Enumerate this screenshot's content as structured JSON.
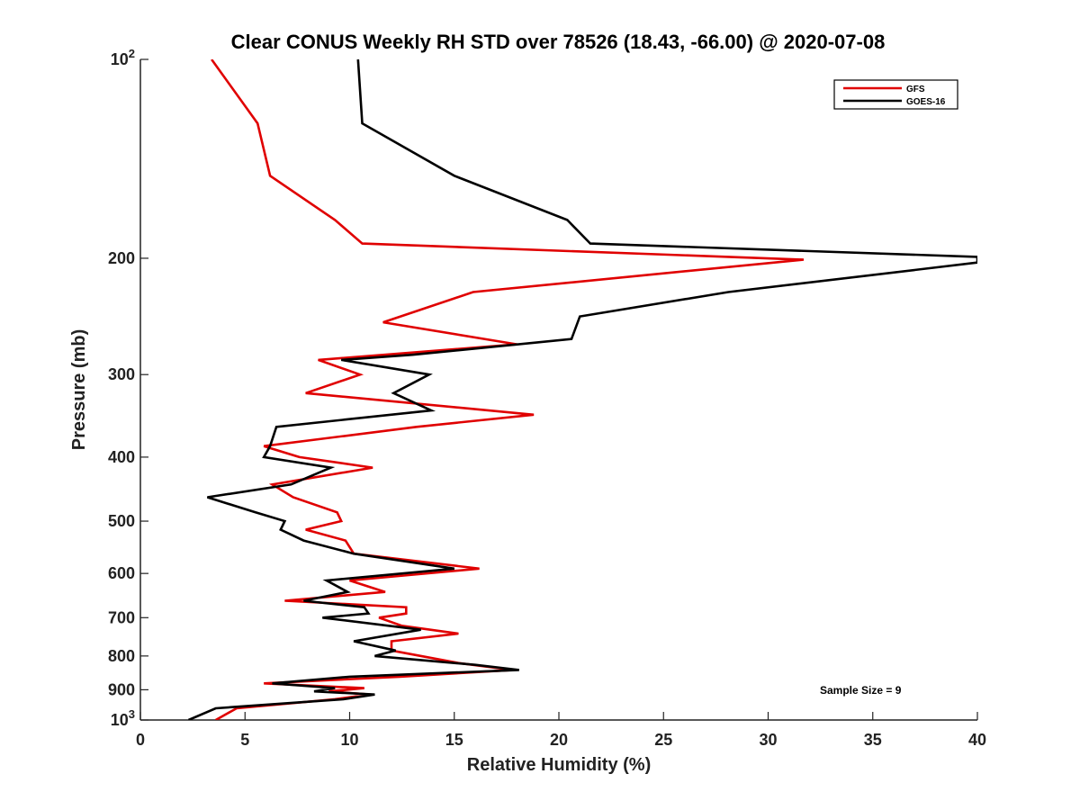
{
  "chart_data": {
    "type": "line",
    "title": "Clear CONUS Weekly RH STD over 78526 (18.43, -66.00) @ 2020-07-08",
    "xlabel": "Relative Humidity (%)",
    "ylabel": "Pressure (mb)",
    "xlim": [
      0,
      40
    ],
    "ylim": [
      100,
      1000
    ],
    "y_scale": "log",
    "y_reversed": false,
    "x_ticks": [
      "0",
      "5",
      "10",
      "15",
      "20",
      "25",
      "30",
      "35",
      "40"
    ],
    "y_ticks": [
      {
        "value": 100,
        "base": "10",
        "exp": "2"
      },
      {
        "value": 200,
        "label": "200"
      },
      {
        "value": 300,
        "label": "300"
      },
      {
        "value": 400,
        "label": "400"
      },
      {
        "value": 500,
        "label": "500"
      },
      {
        "value": 600,
        "label": "600"
      },
      {
        "value": 700,
        "label": "700"
      },
      {
        "value": 800,
        "label": "800"
      },
      {
        "value": 900,
        "label": "900"
      },
      {
        "value": 1000,
        "base": "10",
        "exp": "3"
      }
    ],
    "legend_position": "top-right",
    "grid": false,
    "annotation": "Sample Size = 9",
    "series": [
      {
        "name": "GFS",
        "color": "#e00000",
        "points": [
          [
            3.4,
            100
          ],
          [
            5.6,
            125
          ],
          [
            6.2,
            150
          ],
          [
            9.3,
            175
          ],
          [
            10.6,
            190
          ],
          [
            31.7,
            201
          ],
          [
            15.9,
            225
          ],
          [
            11.6,
            250
          ],
          [
            18.0,
            270
          ],
          [
            8.5,
            285
          ],
          [
            10.5,
            300
          ],
          [
            7.9,
            320
          ],
          [
            18.8,
            345
          ],
          [
            13.2,
            360
          ],
          [
            5.9,
            385
          ],
          [
            7.6,
            400
          ],
          [
            11.1,
            415
          ],
          [
            6.3,
            440
          ],
          [
            7.3,
            460
          ],
          [
            9.4,
            485
          ],
          [
            9.6,
            500
          ],
          [
            7.9,
            515
          ],
          [
            9.8,
            535
          ],
          [
            10.2,
            560
          ],
          [
            16.2,
            590
          ],
          [
            10.0,
            615
          ],
          [
            11.7,
            640
          ],
          [
            6.9,
            660
          ],
          [
            12.7,
            675
          ],
          [
            12.7,
            690
          ],
          [
            11.4,
            700
          ],
          [
            12.5,
            720
          ],
          [
            15.2,
            740
          ],
          [
            12.0,
            760
          ],
          [
            12.0,
            785
          ],
          [
            15.2,
            820
          ],
          [
            17.8,
            840
          ],
          [
            12.4,
            860
          ],
          [
            5.9,
            880
          ],
          [
            10.7,
            895
          ],
          [
            9.0,
            905
          ],
          [
            11.0,
            915
          ],
          [
            9.3,
            930
          ],
          [
            4.6,
            960
          ],
          [
            3.6,
            1000
          ]
        ]
      },
      {
        "name": "GOES-16",
        "color": "#000000",
        "points": [
          [
            10.4,
            100
          ],
          [
            10.6,
            125
          ],
          [
            15.0,
            150
          ],
          [
            20.4,
            175
          ],
          [
            21.5,
            190
          ],
          [
            40.0,
            199
          ],
          [
            40.0,
            203
          ],
          [
            28.1,
            225
          ],
          [
            21.0,
            245
          ],
          [
            20.6,
            265
          ],
          [
            13.0,
            280
          ],
          [
            9.6,
            285
          ],
          [
            13.8,
            300
          ],
          [
            12.1,
            320
          ],
          [
            13.9,
            340
          ],
          [
            6.5,
            360
          ],
          [
            6.2,
            385
          ],
          [
            5.9,
            400
          ],
          [
            9.1,
            415
          ],
          [
            7.2,
            440
          ],
          [
            3.2,
            460
          ],
          [
            5.5,
            485
          ],
          [
            6.9,
            500
          ],
          [
            6.7,
            515
          ],
          [
            7.8,
            535
          ],
          [
            10.2,
            560
          ],
          [
            15.0,
            590
          ],
          [
            8.9,
            615
          ],
          [
            9.9,
            640
          ],
          [
            7.8,
            660
          ],
          [
            10.7,
            675
          ],
          [
            10.9,
            690
          ],
          [
            8.7,
            700
          ],
          [
            13.4,
            730
          ],
          [
            10.2,
            760
          ],
          [
            12.2,
            785
          ],
          [
            11.2,
            800
          ],
          [
            16.0,
            825
          ],
          [
            18.1,
            840
          ],
          [
            10.0,
            860
          ],
          [
            6.3,
            880
          ],
          [
            9.3,
            895
          ],
          [
            8.3,
            905
          ],
          [
            11.2,
            915
          ],
          [
            9.7,
            930
          ],
          [
            3.6,
            960
          ],
          [
            2.3,
            1000
          ]
        ]
      }
    ]
  }
}
